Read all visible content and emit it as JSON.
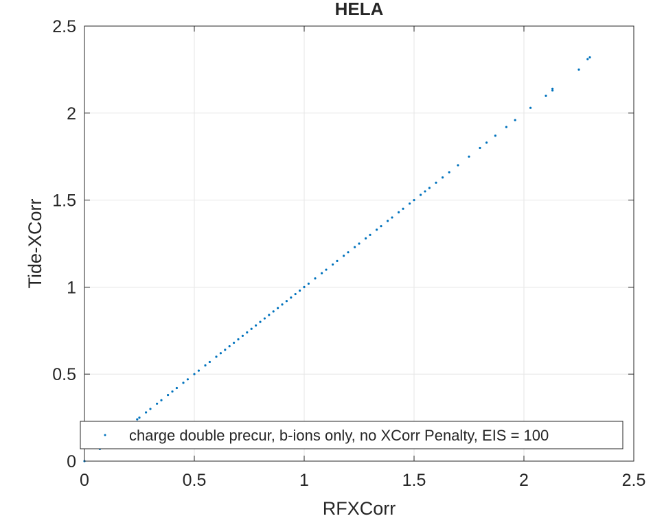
{
  "chart_data": {
    "type": "scatter",
    "title": "HELA",
    "xlabel": "RFXCorr",
    "ylabel": "Tide-XCorr",
    "xlim": [
      0,
      2.5
    ],
    "ylim": [
      0,
      2.5
    ],
    "xticks": [
      "0",
      "0.5",
      "1",
      "1.5",
      "2",
      "2.5"
    ],
    "yticks": [
      "0",
      "0.5",
      "1",
      "1.5",
      "2",
      "2.5"
    ],
    "grid": true,
    "legend_position": "bottom",
    "colors": {
      "series": "#0072BD",
      "grid": "#e6e6e6",
      "axis": "#262626"
    },
    "series": [
      {
        "name": "charge double precur, b-ions only, no XCorr Penalty, EIS = 100",
        "x": [
          0.0,
          0.07,
          0.15,
          0.24,
          0.25,
          0.28,
          0.3,
          0.33,
          0.35,
          0.38,
          0.4,
          0.42,
          0.45,
          0.47,
          0.5,
          0.52,
          0.55,
          0.57,
          0.6,
          0.62,
          0.64,
          0.66,
          0.68,
          0.7,
          0.72,
          0.74,
          0.76,
          0.78,
          0.8,
          0.82,
          0.84,
          0.86,
          0.88,
          0.9,
          0.92,
          0.94,
          0.96,
          0.98,
          1.0,
          1.02,
          1.05,
          1.08,
          1.1,
          1.13,
          1.15,
          1.18,
          1.2,
          1.23,
          1.25,
          1.28,
          1.3,
          1.33,
          1.35,
          1.38,
          1.4,
          1.43,
          1.45,
          1.48,
          1.5,
          1.53,
          1.55,
          1.57,
          1.6,
          1.63,
          1.66,
          1.7,
          1.75,
          1.8,
          1.83,
          1.87,
          1.92,
          1.96,
          2.03,
          2.1,
          2.13,
          2.13,
          2.25,
          2.29,
          2.3
        ],
        "y": [
          0.0,
          0.07,
          0.15,
          0.24,
          0.25,
          0.28,
          0.3,
          0.33,
          0.35,
          0.38,
          0.4,
          0.42,
          0.45,
          0.47,
          0.5,
          0.52,
          0.55,
          0.57,
          0.6,
          0.62,
          0.64,
          0.66,
          0.68,
          0.7,
          0.72,
          0.74,
          0.76,
          0.78,
          0.8,
          0.82,
          0.84,
          0.86,
          0.88,
          0.9,
          0.92,
          0.94,
          0.96,
          0.98,
          1.0,
          1.02,
          1.05,
          1.08,
          1.1,
          1.13,
          1.15,
          1.18,
          1.2,
          1.23,
          1.25,
          1.28,
          1.3,
          1.33,
          1.35,
          1.38,
          1.4,
          1.43,
          1.45,
          1.48,
          1.5,
          1.53,
          1.55,
          1.57,
          1.6,
          1.63,
          1.66,
          1.7,
          1.75,
          1.8,
          1.83,
          1.87,
          1.92,
          1.96,
          2.03,
          2.1,
          2.13,
          2.14,
          2.25,
          2.31,
          2.32
        ]
      }
    ]
  }
}
